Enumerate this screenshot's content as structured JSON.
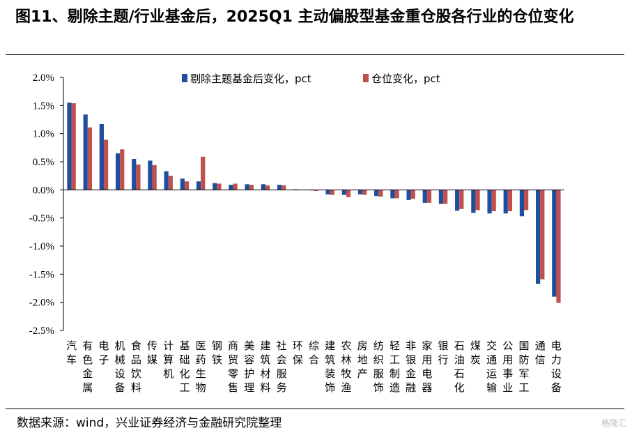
{
  "header": {
    "title": "图11、剔除主题/行业基金后，2025Q1 主动偏股型基金重仓股各行业的仓位变化"
  },
  "footer": {
    "source": "数据来源：wind，兴业证券经济与金融研究院整理",
    "watermark": "格隆汇"
  },
  "colors": {
    "series1": "#1F4E9C",
    "series2": "#C0504D"
  },
  "chart_data": {
    "type": "bar",
    "title": "",
    "xlabel": "",
    "ylabel": "",
    "ylim": [
      -2.5,
      2.0
    ],
    "yticks": [
      "2.0%",
      "1.5%",
      "1.0%",
      "0.5%",
      "0.0%",
      "-0.5%",
      "-1.0%",
      "-1.5%",
      "-2.0%",
      "-2.5%"
    ],
    "legend_position": "top-center",
    "grid": false,
    "categories": [
      "汽车",
      "有色金属",
      "电子",
      "机械设备",
      "食品饮料",
      "传媒",
      "计算机",
      "基础化工",
      "医药生物",
      "钢铁",
      "商贸零售",
      "美容护理",
      "建筑材料",
      "社会服务",
      "环保",
      "综合",
      "建筑装饰",
      "农林牧渔",
      "房地产",
      "纺织服饰",
      "轻工制造",
      "非银金融",
      "家用电器",
      "银行",
      "石油石化",
      "煤炭",
      "交通运输",
      "公用事业",
      "国防军工",
      "通信",
      "电力设备"
    ],
    "series": [
      {
        "name": "剔除主题基金后变化，pct",
        "values": [
          1.55,
          1.34,
          1.17,
          0.65,
          0.55,
          0.52,
          0.33,
          0.2,
          0.15,
          0.12,
          0.09,
          0.1,
          0.1,
          0.09,
          0.01,
          -0.01,
          -0.08,
          -0.09,
          -0.08,
          -0.11,
          -0.15,
          -0.18,
          -0.23,
          -0.25,
          -0.37,
          -0.41,
          -0.42,
          -0.42,
          -0.47,
          -1.67,
          -1.9
        ]
      },
      {
        "name": "仓位变化，pct",
        "values": [
          1.54,
          1.11,
          0.89,
          0.72,
          0.45,
          0.44,
          0.25,
          0.15,
          0.59,
          0.11,
          0.11,
          0.09,
          0.08,
          0.08,
          0.0,
          -0.02,
          -0.09,
          -0.13,
          -0.09,
          -0.12,
          -0.15,
          -0.16,
          -0.23,
          -0.25,
          -0.34,
          -0.36,
          -0.38,
          -0.38,
          -0.36,
          -1.59,
          -2.01
        ]
      }
    ]
  }
}
